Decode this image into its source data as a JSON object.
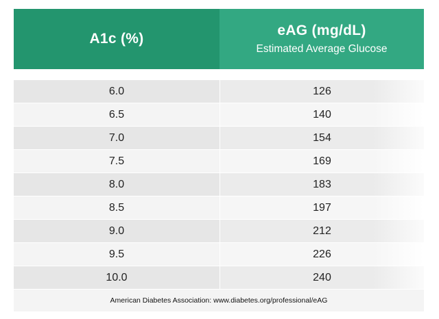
{
  "header": {
    "a1c_title": "A1c (%)",
    "eag_title": "eAG (mg/dL)",
    "eag_subtitle": "Estimated Average Glucose"
  },
  "rows": [
    {
      "a1c": "6.0",
      "eag": "126"
    },
    {
      "a1c": "6.5",
      "eag": "140"
    },
    {
      "a1c": "7.0",
      "eag": "154"
    },
    {
      "a1c": "7.5",
      "eag": "169"
    },
    {
      "a1c": "8.0",
      "eag": "183"
    },
    {
      "a1c": "8.5",
      "eag": "197"
    },
    {
      "a1c": "9.0",
      "eag": "212"
    },
    {
      "a1c": "9.5",
      "eag": "226"
    },
    {
      "a1c": "10.0",
      "eag": "240"
    }
  ],
  "footer": {
    "source": "American Diabetes Association: www.diabetes.org/professional/eAG"
  },
  "colors": {
    "header_left": "#23956e",
    "header_right": "#33a882",
    "row_shade": "#e6e6e6",
    "row_light": "#f4f4f4"
  }
}
